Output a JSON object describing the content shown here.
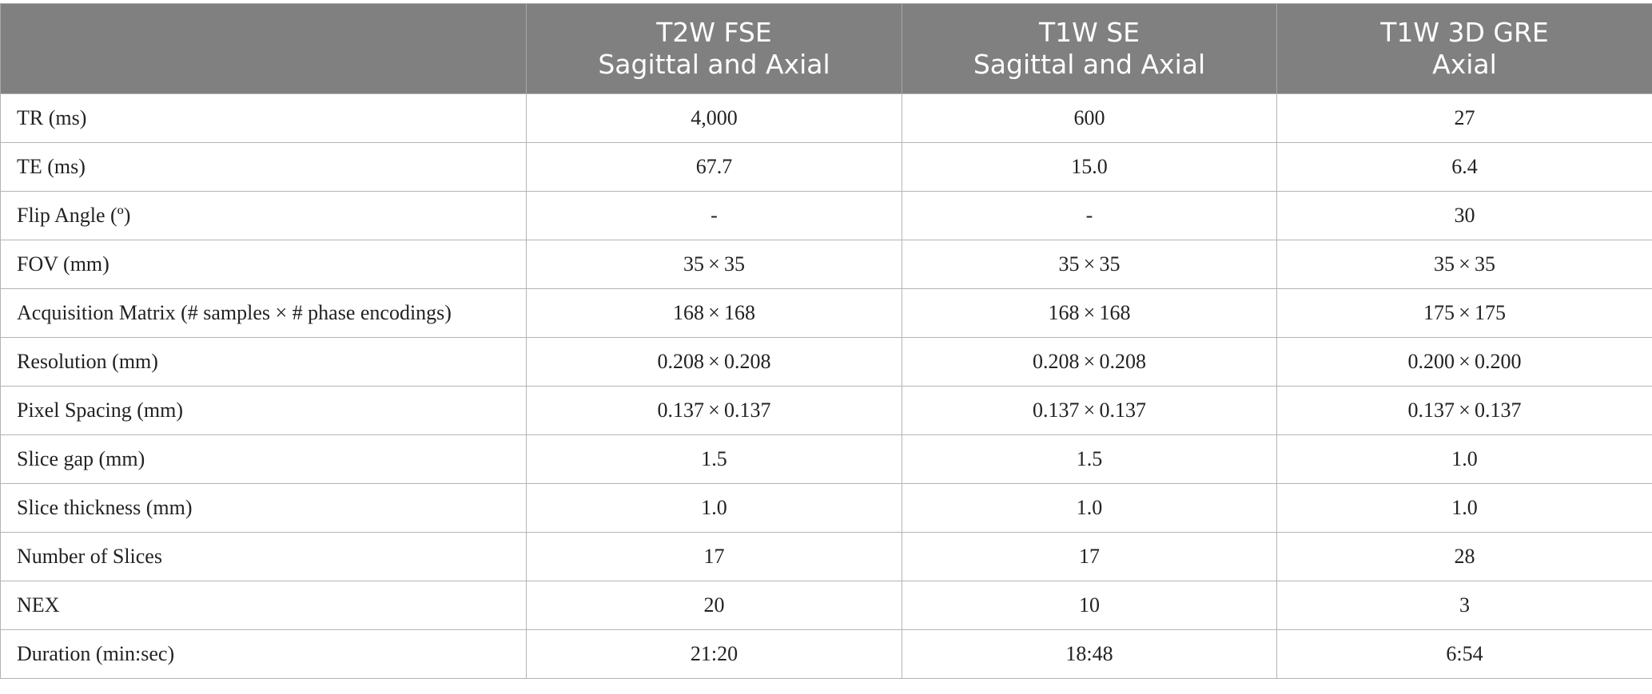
{
  "header": {
    "blank": "",
    "columns": [
      {
        "line1": "T2W FSE",
        "line2": "Sagittal and Axial"
      },
      {
        "line1": "T1W SE",
        "line2": "Sagittal and Axial"
      },
      {
        "line1": "T1W 3D GRE",
        "line2": "Axial"
      }
    ]
  },
  "rows": [
    {
      "label": "TR (ms)",
      "values": [
        "4,000",
        "600",
        "27"
      ]
    },
    {
      "label": "TE (ms)",
      "values": [
        "67.7",
        "15.0",
        "6.4"
      ]
    },
    {
      "label": "Flip Angle (º)",
      "values": [
        "-",
        "-",
        "30"
      ]
    },
    {
      "label": "FOV (mm)",
      "values": [
        "35 × 35",
        "35 × 35",
        "35 × 35"
      ]
    },
    {
      "label": "Acquisition Matrix (# samples × # phase encodings)",
      "values": [
        "168 × 168",
        "168 × 168",
        "175 × 175"
      ]
    },
    {
      "label": "Resolution (mm)",
      "values": [
        "0.208 × 0.208",
        "0.208 × 0.208",
        "0.200 × 0.200"
      ]
    },
    {
      "label": "Pixel Spacing (mm)",
      "values": [
        "0.137 × 0.137",
        "0.137 × 0.137",
        "0.137 × 0.137"
      ]
    },
    {
      "label": "Slice gap (mm)",
      "values": [
        "1.5",
        "1.5",
        "1.0"
      ]
    },
    {
      "label": "Slice thickness (mm)",
      "values": [
        "1.0",
        "1.0",
        "1.0"
      ]
    },
    {
      "label": "Number of Slices",
      "values": [
        "17",
        "17",
        "28"
      ]
    },
    {
      "label": "NEX",
      "values": [
        "20",
        "10",
        "3"
      ]
    },
    {
      "label": "Duration (min:sec)",
      "values": [
        "21:20",
        "18:48",
        "6:54"
      ]
    }
  ],
  "colors": {
    "header_background": "#808080",
    "header_text": "#ffffff",
    "grid_line": "#b4b4b4"
  }
}
